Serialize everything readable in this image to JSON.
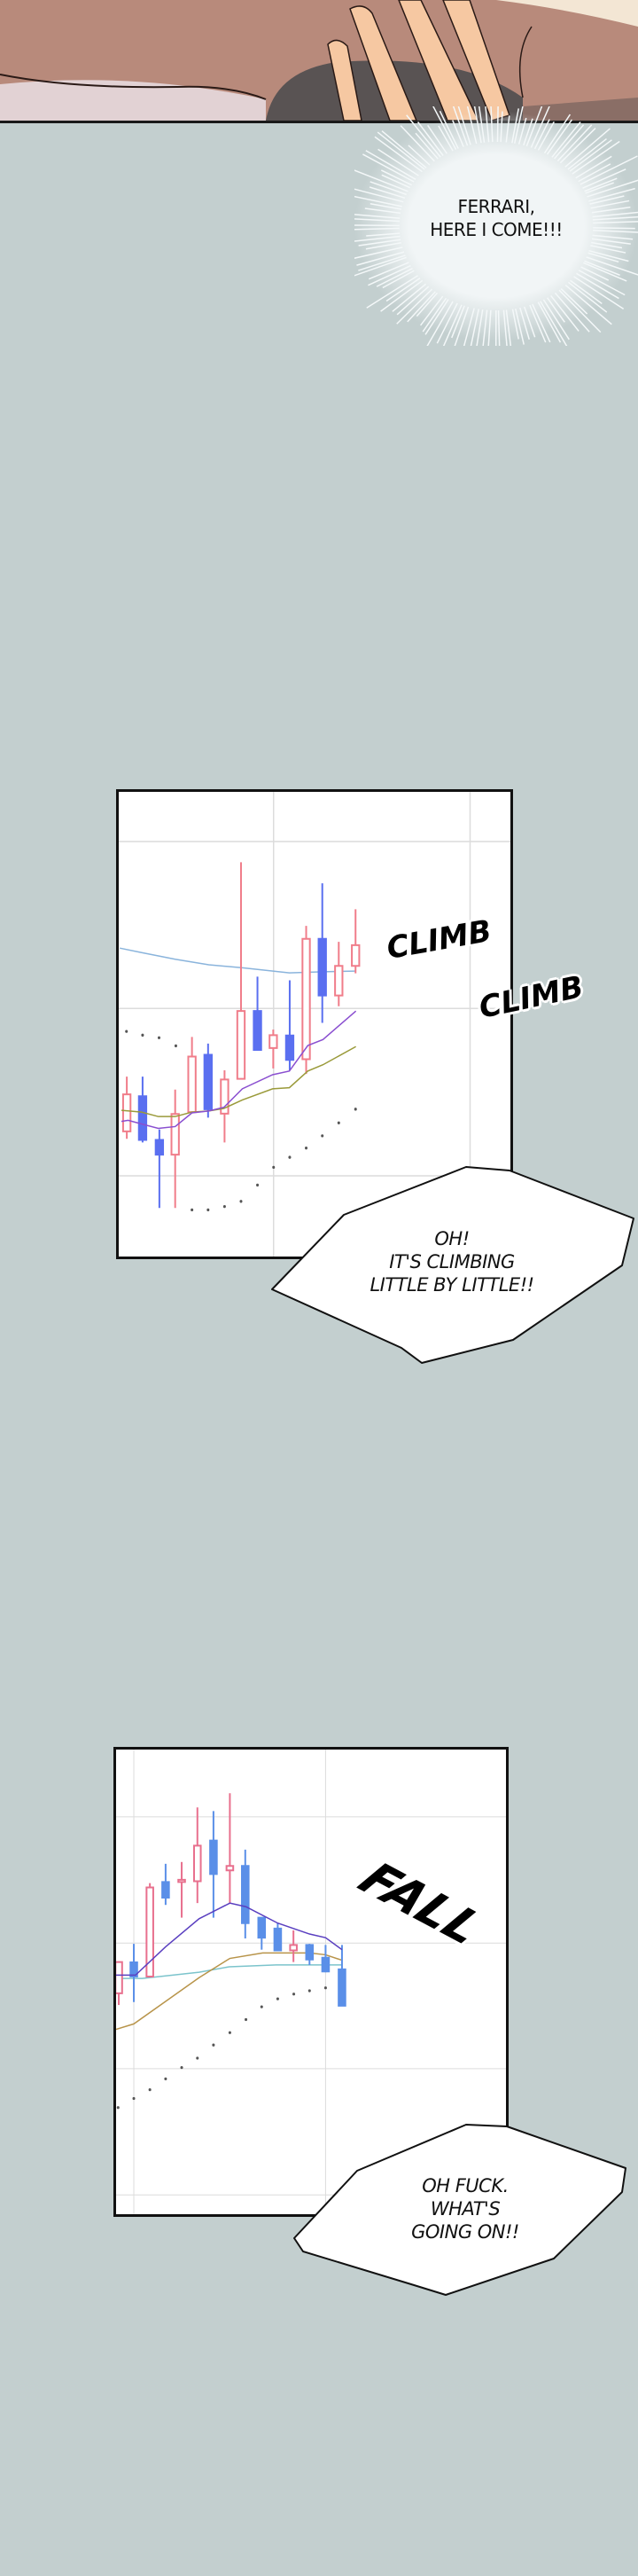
{
  "panels": [
    {
      "caption": "FERRARI,\nHERE I COME!!!"
    },
    {
      "sfx": [
        "CLIMB",
        "CLIMB"
      ],
      "speech": "OH!\nIT'S CLIMBING\nLITTLE BY LITTLE!!"
    },
    {
      "sfx": [
        "FALL"
      ],
      "speech": "OH FUCK.\nWHAT'S\nGOING ON!!"
    }
  ],
  "colors": {
    "background": "#c3cfcf",
    "bullish_candle": "#f07d8a",
    "bearish_candle": "#5a6ff0",
    "ma_short": "#8a4fd0",
    "ma_mid": "#9a9a3a",
    "ma_long": "#8ab4dc",
    "parabolic_sar_dots": "#555555"
  }
}
